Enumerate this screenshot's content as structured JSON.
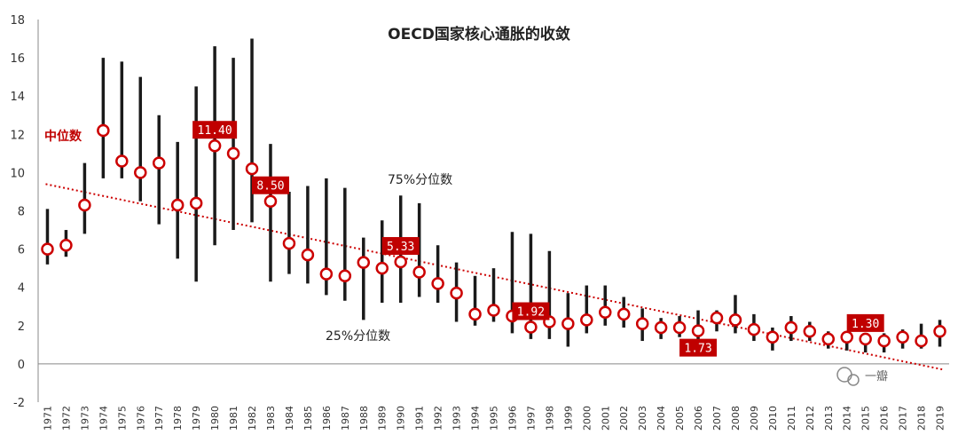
{
  "chart_data": {
    "type": "scatter",
    "title": "OECD国家核心通胀的收敛",
    "x": [
      "1971",
      "1972",
      "1973",
      "1974",
      "1975",
      "1976",
      "1977",
      "1978",
      "1979",
      "1980",
      "1981",
      "1982",
      "1983",
      "1984",
      "1985",
      "1986",
      "1987",
      "1988",
      "1989",
      "1990",
      "1991",
      "1992",
      "1993",
      "1994",
      "1995",
      "1996",
      "1997",
      "1998",
      "1999",
      "2000",
      "2001",
      "2002",
      "2003",
      "2004",
      "2005",
      "2006",
      "2007",
      "2008",
      "2009",
      "2010",
      "2011",
      "2012",
      "2013",
      "2014",
      "2015",
      "2016",
      "2017",
      "2018",
      "2019"
    ],
    "series": [
      {
        "name": "中位数",
        "values": [
          6.0,
          6.2,
          8.3,
          12.2,
          10.6,
          10.0,
          10.5,
          8.3,
          8.4,
          11.4,
          11.0,
          10.2,
          8.5,
          6.3,
          5.7,
          4.7,
          4.6,
          5.3,
          5.0,
          5.33,
          4.8,
          4.2,
          3.7,
          2.6,
          2.8,
          2.5,
          1.92,
          2.2,
          2.1,
          2.3,
          2.7,
          2.6,
          2.1,
          1.9,
          1.9,
          1.73,
          2.4,
          2.3,
          1.8,
          1.4,
          1.9,
          1.7,
          1.3,
          1.4,
          1.3,
          1.2,
          1.4,
          1.2,
          1.7
        ]
      },
      {
        "name": "75%分位数",
        "values": [
          8.1,
          7.0,
          10.5,
          16.0,
          15.8,
          15.0,
          13.0,
          11.6,
          14.5,
          16.6,
          16.0,
          17.0,
          11.5,
          9.0,
          9.3,
          9.7,
          9.2,
          6.6,
          7.5,
          8.8,
          8.4,
          6.2,
          5.3,
          4.6,
          5.0,
          6.9,
          6.8,
          5.9,
          3.7,
          4.1,
          4.1,
          3.5,
          2.9,
          2.4,
          2.5,
          2.8,
          2.8,
          3.6,
          2.6,
          1.9,
          2.5,
          2.2,
          1.7,
          1.7,
          1.6,
          1.6,
          1.8,
          2.1,
          2.3
        ]
      },
      {
        "name": "25%分位数",
        "values": [
          5.2,
          5.6,
          6.8,
          9.7,
          9.7,
          8.5,
          7.3,
          5.5,
          4.3,
          6.2,
          7.0,
          7.4,
          4.3,
          4.7,
          4.2,
          3.6,
          3.3,
          2.3,
          3.2,
          3.2,
          3.5,
          3.2,
          2.2,
          2.0,
          2.2,
          1.6,
          1.3,
          1.3,
          0.9,
          1.6,
          2.0,
          1.9,
          1.2,
          1.3,
          1.4,
          1.0,
          1.7,
          1.6,
          1.2,
          0.7,
          1.2,
          1.2,
          0.8,
          0.7,
          0.6,
          0.6,
          0.8,
          0.8,
          0.9
        ]
      }
    ],
    "ylim": [
      -2,
      18
    ],
    "yticks": [
      -2,
      0,
      2,
      4,
      6,
      8,
      10,
      12,
      14,
      16,
      18
    ],
    "trendline": {
      "x": [
        "1971",
        "2019"
      ],
      "y": [
        9.4,
        -0.3
      ]
    },
    "callouts": [
      {
        "x": "1980",
        "label": "11.40",
        "above": true
      },
      {
        "x": "1983",
        "label": "8.50",
        "above": true
      },
      {
        "x": "1990",
        "label": "5.33",
        "above": true
      },
      {
        "x": "1997",
        "label": "1.92",
        "above": true
      },
      {
        "x": "2006",
        "label": "1.73",
        "above": false
      },
      {
        "x": "2015",
        "label": "1.30",
        "above": true
      }
    ],
    "annotations": {
      "median": "中位数",
      "p75": "75%分位数",
      "p25": "25%分位数"
    },
    "colors": {
      "marker": "#cc0000",
      "bar": "#1a1a1a",
      "trend": "#cc0000",
      "callout_bg": "#c00000"
    },
    "grid": false,
    "legend": "none"
  },
  "watermark": "一瓣"
}
